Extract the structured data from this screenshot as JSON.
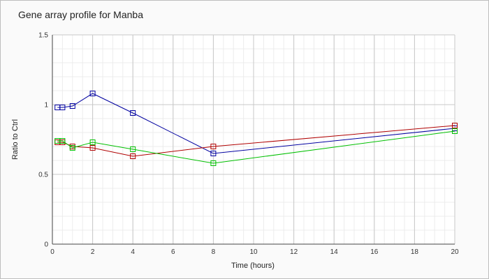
{
  "chart_data": {
    "type": "line",
    "title": "Gene array profile for Manba",
    "xlabel": "Time (hours)",
    "ylabel": "Ratio to Ctrl",
    "xlim": [
      0,
      20
    ],
    "ylim": [
      0,
      1.5
    ],
    "x_ticks": [
      "0",
      "2",
      "4",
      "6",
      "8",
      "10",
      "12",
      "14",
      "16",
      "18",
      "20"
    ],
    "y_ticks": [
      "0",
      "0.5",
      "1",
      "1.5"
    ],
    "grid": true,
    "marker": "square",
    "series": [
      {
        "color": "#0000a0",
        "x": [
          0.25,
          0.5,
          1,
          2,
          4,
          8,
          20
        ],
        "y": [
          0.98,
          0.98,
          0.99,
          1.08,
          0.94,
          0.65,
          0.83
        ]
      },
      {
        "color": "#b00000",
        "x": [
          0.25,
          0.5,
          1,
          2,
          4,
          8,
          20
        ],
        "y": [
          0.73,
          0.73,
          0.7,
          0.69,
          0.63,
          0.7,
          0.85
        ]
      },
      {
        "color": "#00c000",
        "x": [
          0.25,
          0.5,
          1,
          2,
          4,
          8,
          20
        ],
        "y": [
          0.74,
          0.74,
          0.69,
          0.73,
          0.68,
          0.58,
          0.81
        ]
      }
    ]
  }
}
